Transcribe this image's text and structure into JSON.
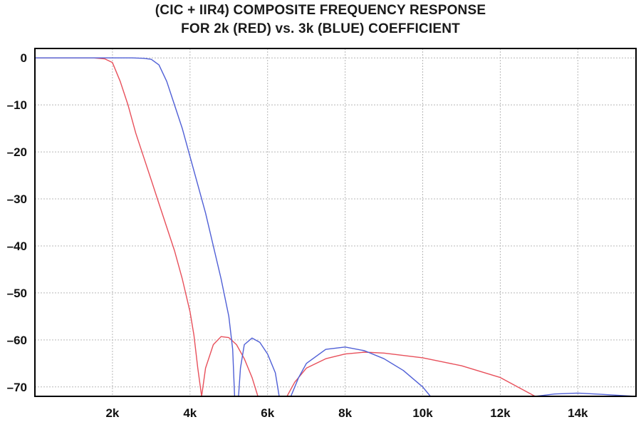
{
  "chart_data": {
    "type": "line",
    "title": "(CIC + IIR4) COMPOSITE FREQUENCY RESPONSE",
    "subtitle": "FOR 2k (RED) vs. 3k (BLUE) COEFFICIENT",
    "xlabel": "",
    "ylabel": "",
    "xlim": [
      0,
      15500
    ],
    "ylim": [
      -72,
      2
    ],
    "grid": true,
    "legend": "none",
    "x_ticks": [
      {
        "value": 2000,
        "label": "2k"
      },
      {
        "value": 4000,
        "label": "4k"
      },
      {
        "value": 6000,
        "label": "6k"
      },
      {
        "value": 8000,
        "label": "8k"
      },
      {
        "value": 10000,
        "label": "10k"
      },
      {
        "value": 12000,
        "label": "12k"
      },
      {
        "value": 14000,
        "label": "14k"
      }
    ],
    "y_ticks": [
      {
        "value": 0,
        "label": "0"
      },
      {
        "value": -10,
        "label": "–10"
      },
      {
        "value": -20,
        "label": "–20"
      },
      {
        "value": -30,
        "label": "–30"
      },
      {
        "value": -40,
        "label": "–40"
      },
      {
        "value": -50,
        "label": "–50"
      },
      {
        "value": -60,
        "label": "–60"
      },
      {
        "value": -70,
        "label": "–70"
      }
    ],
    "series": [
      {
        "color": "#e8505b",
        "segments": [
          [
            [
              0,
              0
            ],
            [
              1500,
              0
            ],
            [
              1800,
              -0.2
            ],
            [
              2000,
              -1
            ],
            [
              2200,
              -5
            ],
            [
              2400,
              -10
            ],
            [
              2600,
              -16
            ],
            [
              2800,
              -21
            ],
            [
              3000,
              -26
            ],
            [
              3200,
              -31
            ],
            [
              3400,
              -36
            ],
            [
              3600,
              -41
            ],
            [
              3800,
              -47
            ],
            [
              4000,
              -54
            ],
            [
              4100,
              -59
            ],
            [
              4200,
              -66
            ],
            [
              4300,
              -72
            ]
          ],
          [
            [
              4300,
              -72
            ],
            [
              4400,
              -66
            ],
            [
              4600,
              -61
            ],
            [
              4800,
              -59.3
            ],
            [
              5000,
              -59.5
            ],
            [
              5200,
              -61
            ],
            [
              5400,
              -64
            ],
            [
              5600,
              -68
            ],
            [
              5750,
              -72
            ]
          ],
          [
            [
              6500,
              -72
            ],
            [
              6700,
              -69
            ],
            [
              7000,
              -66
            ],
            [
              7500,
              -64
            ],
            [
              8000,
              -63
            ],
            [
              8500,
              -62.6
            ],
            [
              9000,
              -62.8
            ],
            [
              10000,
              -63.8
            ],
            [
              11000,
              -65.5
            ],
            [
              12000,
              -68
            ],
            [
              12900,
              -72
            ]
          ]
        ]
      },
      {
        "color": "#4f5fd6",
        "segments": [
          [
            [
              0,
              0
            ],
            [
              2500,
              0
            ],
            [
              2800,
              -0.1
            ],
            [
              3000,
              -0.3
            ],
            [
              3200,
              -1.5
            ],
            [
              3400,
              -5
            ],
            [
              3600,
              -10
            ],
            [
              3800,
              -15
            ],
            [
              4000,
              -21
            ],
            [
              4200,
              -27
            ],
            [
              4400,
              -33
            ],
            [
              4600,
              -40
            ],
            [
              4800,
              -47
            ],
            [
              5000,
              -55
            ],
            [
              5100,
              -62
            ],
            [
              5150,
              -72
            ]
          ],
          [
            [
              5250,
              -72
            ],
            [
              5300,
              -66
            ],
            [
              5400,
              -61
            ],
            [
              5600,
              -59.6
            ],
            [
              5800,
              -60.5
            ],
            [
              6000,
              -63
            ],
            [
              6200,
              -67
            ],
            [
              6300,
              -72
            ]
          ],
          [
            [
              6600,
              -72
            ],
            [
              6800,
              -68
            ],
            [
              7000,
              -65
            ],
            [
              7500,
              -62
            ],
            [
              8000,
              -61.5
            ],
            [
              8500,
              -62.3
            ],
            [
              9000,
              -64
            ],
            [
              9500,
              -66.5
            ],
            [
              10000,
              -70
            ],
            [
              10200,
              -72
            ]
          ],
          [
            [
              12900,
              -72
            ],
            [
              13400,
              -71.5
            ],
            [
              14000,
              -71.3
            ],
            [
              14700,
              -71.6
            ],
            [
              15500,
              -72
            ]
          ]
        ]
      }
    ]
  }
}
